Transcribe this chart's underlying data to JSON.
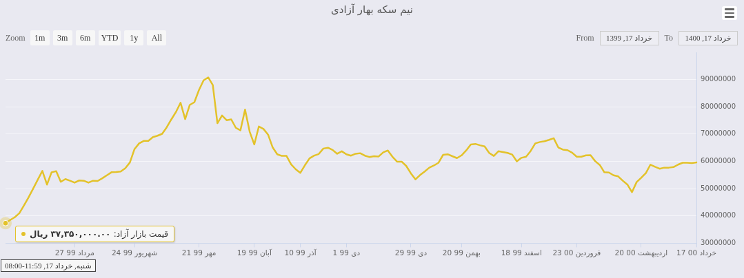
{
  "chart_data": {
    "type": "line",
    "title": "نیم سکه بهار آزادی",
    "categories": [
      null,
      null,
      null,
      null,
      null,
      null,
      null,
      null,
      null,
      null,
      null,
      null,
      null,
      null,
      null,
      "27 مرداد 99",
      null,
      null,
      null,
      null,
      null,
      null,
      null,
      null,
      null,
      null,
      null,
      null,
      "24 شهریور 99",
      null,
      null,
      null,
      null,
      null,
      null,
      null,
      null,
      null,
      null,
      null,
      null,
      null,
      "21 مهر 99",
      null,
      null,
      null,
      null,
      null,
      null,
      null,
      null,
      null,
      null,
      null,
      "19 آبان 99",
      null,
      null,
      null,
      null,
      null,
      null,
      null,
      null,
      null,
      "10 آذر 99",
      null,
      null,
      null,
      null,
      null,
      null,
      null,
      null,
      null,
      "1 دی 99",
      null,
      null,
      null,
      null,
      null,
      null,
      null,
      null,
      null,
      null,
      null,
      null,
      null,
      "29 دی 99",
      null,
      null,
      null,
      null,
      null,
      null,
      null,
      null,
      null,
      null,
      "20 بهمن 99",
      null,
      null,
      null,
      null,
      null,
      null,
      null,
      null,
      null,
      null,
      null,
      null,
      "18 اسفند 99",
      null,
      null,
      null,
      null,
      null,
      null,
      null,
      null,
      null,
      null,
      null,
      "23 فروردین 00",
      null,
      null,
      null,
      null,
      null,
      null,
      null,
      null,
      null,
      null,
      null,
      null,
      null,
      "20 اردیبهشت 00",
      null,
      null,
      null,
      null,
      null,
      null,
      null,
      null,
      null,
      null,
      null,
      "17 خرداد 00"
    ],
    "values": [
      37350000,
      38500000,
      39500000,
      41000000,
      43800000,
      46800000,
      50000000,
      53300000,
      56500000,
      51500000,
      56000000,
      56400000,
      52500000,
      53500000,
      52900000,
      52200000,
      53000000,
      52900000,
      52200000,
      52900000,
      52800000,
      53800000,
      54900000,
      56000000,
      56100000,
      56300000,
      57500000,
      59600000,
      64500000,
      66600000,
      67500000,
      67500000,
      68900000,
      69400000,
      70100000,
      72500000,
      75400000,
      78100000,
      81500000,
      75500000,
      80700000,
      81700000,
      86200000,
      89700000,
      90800000,
      88000000,
      74000000,
      76800000,
      75100000,
      75400000,
      72300000,
      71400000,
      79000000,
      70900000,
      66200000,
      72800000,
      71900000,
      69800000,
      65100000,
      62600000,
      62000000,
      62000000,
      58900000,
      57100000,
      55800000,
      58600000,
      61100000,
      62100000,
      62700000,
      64700000,
      65000000,
      64200000,
      62800000,
      63700000,
      62600000,
      62100000,
      62800000,
      63000000,
      62100000,
      61600000,
      61900000,
      61800000,
      63300000,
      64000000,
      61700000,
      59900000,
      59900000,
      58300000,
      55600000,
      53400000,
      55000000,
      56300000,
      57700000,
      58500000,
      59500000,
      62400000,
      62600000,
      61900000,
      61200000,
      62200000,
      64000000,
      66200000,
      66400000,
      65900000,
      65500000,
      63100000,
      62000000,
      63700000,
      63400000,
      63100000,
      62500000,
      60000000,
      61300000,
      61700000,
      63800000,
      66600000,
      67100000,
      67400000,
      67900000,
      68500000,
      65100000,
      64300000,
      64100000,
      63200000,
      61700000,
      61700000,
      62200000,
      62300000,
      60100000,
      58700000,
      56000000,
      55900000,
      54900000,
      54500000,
      52900000,
      51500000,
      48700000,
      52400000,
      54000000,
      55700000,
      58800000,
      58000000,
      57300000,
      57700000,
      57700000,
      57900000,
      58800000,
      59500000,
      59500000,
      59400000,
      59600000
    ],
    "color": "#e3c22a",
    "ylim": [
      30000000,
      100000000
    ],
    "yticks": [
      30000000,
      40000000,
      50000000,
      60000000,
      70000000,
      80000000,
      90000000
    ],
    "grid": "y",
    "annotations": [
      "Zoom",
      "1m",
      "3m",
      "6m",
      "YTD",
      "1y",
      "All",
      "From",
      "خرداد 17, 1399",
      "To",
      "خرداد 17, 1400",
      "قیمت بازار آزاد: ۳۷,۳۵۰,۰۰۰.۰۰ ریال",
      "شنبه, خرداد 17, 11:59-08:00"
    ]
  }
}
